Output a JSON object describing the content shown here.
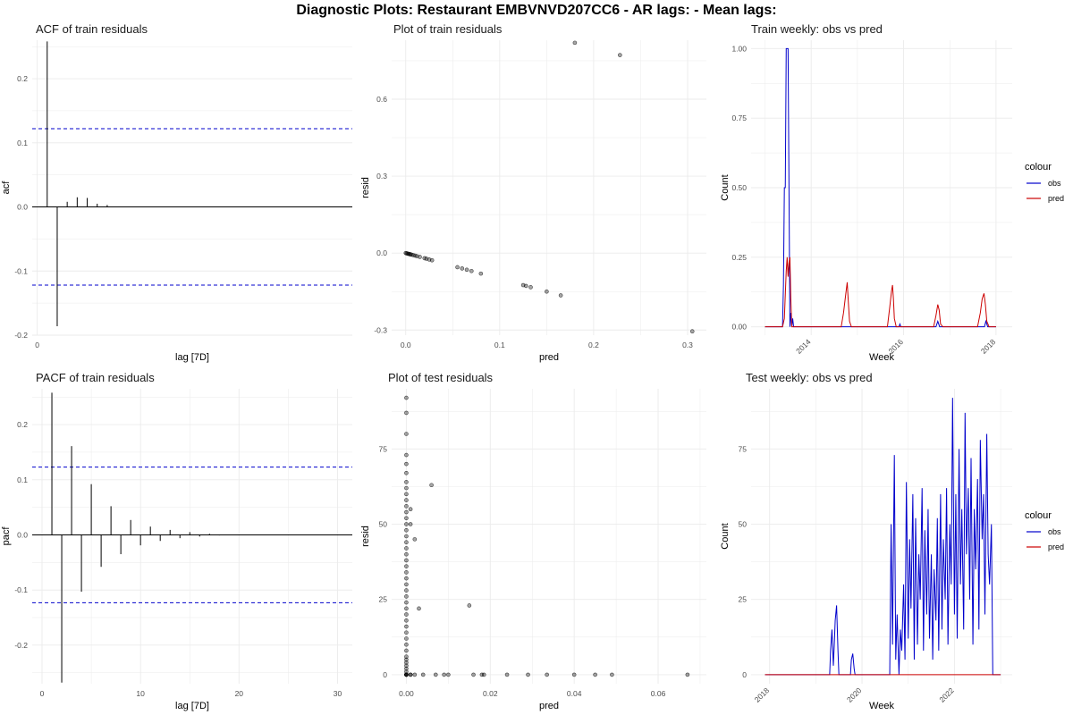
{
  "figure_title": "Diagnostic Plots: Restaurant EMBVNVD207CC6 - AR lags:  - Mean lags:",
  "colors": {
    "obs": "#0000cc",
    "pred": "#cc0000",
    "ci": "#0000cc",
    "spike": "#000000",
    "grid": "#ebebeb"
  },
  "chart_data": [
    {
      "id": "acf",
      "type": "bar",
      "title": "ACF of train residuals",
      "xlabel": "lag [7D]",
      "ylabel": "acf",
      "xlim": [
        -0.5,
        31.5
      ],
      "ylim": [
        -0.2,
        0.26
      ],
      "xticks": [
        0
      ],
      "yticks": [
        -0.2,
        -0.1,
        0.0,
        0.1,
        0.2
      ],
      "ytick_labels": [
        "-0.2",
        "-0.1",
        "0.0",
        "0.1",
        "0.2"
      ],
      "ci": 0.122,
      "x": [
        1,
        2,
        3,
        4,
        5,
        6,
        7
      ],
      "values": [
        0.258,
        -0.186,
        0.008,
        0.015,
        0.014,
        0.005,
        0.003
      ]
    },
    {
      "id": "train-resid",
      "type": "scatter",
      "title": "Plot of train residuals",
      "xlabel": "pred",
      "ylabel": "resid",
      "xlim": [
        -0.015,
        0.32
      ],
      "ylim": [
        -0.32,
        0.83
      ],
      "xticks": [
        0.0,
        0.1,
        0.2,
        0.3
      ],
      "xtick_labels": [
        "0.0",
        "0.1",
        "0.2",
        "0.3"
      ],
      "yticks": [
        -0.3,
        0.0,
        0.3,
        0.6
      ],
      "ytick_labels": [
        "-0.3",
        "0.0",
        "0.3",
        "0.6"
      ],
      "x": [
        0.0,
        0.001,
        0.002,
        0.003,
        0.004,
        0.005,
        0.006,
        0.008,
        0.01,
        0.012,
        0.015,
        0.02,
        0.022,
        0.025,
        0.028,
        0.055,
        0.06,
        0.065,
        0.07,
        0.08,
        0.125,
        0.128,
        0.133,
        0.15,
        0.165,
        0.18,
        0.228,
        0.305
      ],
      "y": [
        0.0,
        -0.001,
        -0.002,
        -0.003,
        -0.004,
        -0.005,
        -0.006,
        -0.008,
        -0.01,
        -0.012,
        -0.015,
        -0.02,
        -0.022,
        -0.025,
        -0.028,
        -0.055,
        -0.06,
        -0.065,
        -0.07,
        -0.08,
        -0.125,
        -0.128,
        -0.133,
        -0.15,
        -0.165,
        0.82,
        0.772,
        -0.305
      ]
    },
    {
      "id": "train-weekly",
      "type": "line",
      "title": "Train weekly: obs vs pred",
      "xlabel": "Week",
      "ylabel": "Count",
      "legend_title": "colour",
      "legend_placement": "right",
      "xlim": [
        2012.7,
        2018.35
      ],
      "ylim": [
        -0.03,
        1.03
      ],
      "xticks": [
        2014,
        2016,
        2018
      ],
      "xtick_labels": [
        "2014",
        "2016",
        "2018"
      ],
      "yticks": [
        0.0,
        0.25,
        0.5,
        0.75,
        1.0
      ],
      "ytick_labels": [
        "0.00",
        "0.25",
        "0.50",
        "0.75",
        "1.00"
      ],
      "series": [
        {
          "name": "obs",
          "x": [
            2013.0,
            2013.38,
            2013.4,
            2013.42,
            2013.44,
            2013.46,
            2013.48,
            2013.5,
            2013.52,
            2013.54,
            2013.56,
            2013.58,
            2013.6,
            2013.62,
            2015.9,
            2015.92,
            2015.94,
            2016.7,
            2016.72,
            2016.74,
            2016.76,
            2016.78,
            2017.75,
            2017.78,
            2017.8,
            2017.82,
            2018.0
          ],
          "y": [
            0.0,
            0.0,
            0.15,
            0.5,
            0.5,
            1.0,
            1.0,
            1.0,
            0.5,
            0.0,
            0.05,
            0.0,
            0.03,
            0.0,
            0.0,
            0.01,
            0.0,
            0.0,
            0.01,
            0.02,
            0.01,
            0.0,
            0.0,
            0.02,
            0.01,
            0.0,
            0.0
          ]
        },
        {
          "name": "pred",
          "x": [
            2013.0,
            2013.38,
            2013.42,
            2013.46,
            2013.48,
            2013.5,
            2013.52,
            2013.54,
            2013.56,
            2013.58,
            2013.62,
            2014.65,
            2014.7,
            2014.75,
            2014.78,
            2014.8,
            2014.83,
            2014.87,
            2014.9,
            2015.65,
            2015.7,
            2015.74,
            2015.76,
            2015.78,
            2015.8,
            2015.84,
            2015.88,
            2016.65,
            2016.7,
            2016.74,
            2016.77,
            2016.8,
            2016.85,
            2017.6,
            2017.66,
            2017.7,
            2017.74,
            2017.77,
            2017.8,
            2017.85,
            2018.0
          ],
          "y": [
            0.0,
            0.0,
            0.03,
            0.2,
            0.25,
            0.18,
            0.23,
            0.25,
            0.1,
            0.0,
            0.0,
            0.0,
            0.05,
            0.12,
            0.16,
            0.1,
            0.02,
            0.0,
            0.0,
            0.0,
            0.07,
            0.13,
            0.15,
            0.1,
            0.03,
            0.0,
            0.0,
            0.0,
            0.04,
            0.08,
            0.06,
            0.01,
            0.0,
            0.0,
            0.05,
            0.1,
            0.12,
            0.08,
            0.02,
            0.0,
            0.0
          ]
        }
      ]
    },
    {
      "id": "pacf",
      "type": "bar",
      "title": "PACF of train residuals",
      "xlabel": "lag [7D]",
      "ylabel": "pacf",
      "xlim": [
        -1,
        31.5
      ],
      "ylim": [
        -0.27,
        0.265
      ],
      "xticks": [
        0,
        10,
        20,
        30
      ],
      "xtick_labels": [
        "0",
        "10",
        "20",
        "30"
      ],
      "yticks": [
        -0.2,
        -0.1,
        0.0,
        0.1,
        0.2
      ],
      "ytick_labels": [
        "-0.2",
        "-0.1",
        "0.0",
        "0.1",
        "0.2"
      ],
      "ci": 0.123,
      "x": [
        1,
        2,
        3,
        4,
        5,
        6,
        7,
        8,
        9,
        10,
        11,
        12,
        13,
        14,
        15,
        16,
        17,
        18
      ],
      "values": [
        0.258,
        -0.268,
        0.161,
        -0.103,
        0.092,
        -0.058,
        0.052,
        -0.035,
        0.027,
        -0.019,
        0.015,
        -0.011,
        0.009,
        -0.006,
        0.005,
        -0.003,
        0.002,
        -0.001
      ]
    },
    {
      "id": "test-resid",
      "type": "scatter",
      "title": "Plot of test residuals",
      "xlabel": "pred",
      "ylabel": "resid",
      "xlim": [
        -0.0035,
        0.0715
      ],
      "ylim": [
        -3,
        95
      ],
      "xticks": [
        0.0,
        0.02,
        0.04,
        0.06
      ],
      "xtick_labels": [
        "0.00",
        "0.02",
        "0.04",
        "0.06"
      ],
      "yticks": [
        0,
        25,
        50,
        75
      ],
      "ytick_labels": [
        "0",
        "25",
        "50",
        "75"
      ],
      "x": [
        0.0,
        0.0,
        0.0,
        0.0,
        0.0,
        0.0,
        0.0,
        0.0,
        0.0,
        0.0,
        0.0,
        0.0,
        0.0,
        0.0,
        0.0,
        0.0,
        0.0,
        0.0,
        0.0,
        0.0,
        0.0,
        0.0,
        0.0,
        0.0,
        0.0,
        0.0,
        0.0,
        0.0,
        0.0,
        0.0,
        0.0,
        0.0,
        0.0,
        0.0,
        0.0,
        0.0,
        0.0,
        0.0,
        0.0,
        0.0,
        0.0,
        0.0,
        0.0,
        0.0,
        0.0,
        0.0,
        0.001,
        0.001,
        0.001,
        0.001,
        0.002,
        0.002,
        0.003,
        0.004,
        0.006,
        0.007,
        0.009,
        0.01,
        0.015,
        0.016,
        0.018,
        0.0185,
        0.024,
        0.029,
        0.0335,
        0.04,
        0.045,
        0.049,
        0.067
      ],
      "y": [
        92,
        87,
        80,
        73,
        70,
        67,
        64,
        62,
        60,
        58,
        56,
        54,
        52,
        50,
        48,
        46,
        44,
        42,
        40,
        38,
        36,
        34,
        32,
        30,
        28,
        26,
        24,
        22,
        20,
        18,
        16,
        14,
        12,
        10,
        8,
        6,
        5,
        4,
        3,
        2,
        1,
        0,
        0,
        0,
        0,
        0,
        55,
        50,
        0,
        0,
        45,
        0,
        22,
        0,
        63,
        0,
        0,
        0,
        23,
        0,
        0,
        0,
        0,
        0,
        0,
        0,
        0,
        0,
        0
      ]
    },
    {
      "id": "test-weekly",
      "type": "line",
      "title": "Test weekly: obs vs pred",
      "xlabel": "Week",
      "ylabel": "Count",
      "legend_title": "colour",
      "legend_placement": "right",
      "xlim": [
        2017.6,
        2023.25
      ],
      "ylim": [
        -3,
        95
      ],
      "xticks": [
        2018,
        2020,
        2022
      ],
      "xtick_labels": [
        "2018",
        "2020",
        "2022"
      ],
      "yticks": [
        0,
        25,
        50,
        75
      ],
      "ytick_labels": [
        "0",
        "25",
        "50",
        "75"
      ],
      "series": [
        {
          "name": "obs",
          "x": [
            2017.9,
            2019.3,
            2019.32,
            2019.35,
            2019.38,
            2019.4,
            2019.42,
            2019.45,
            2019.48,
            2019.5,
            2019.52,
            2019.75,
            2019.77,
            2019.8,
            2019.83,
            2019.85,
            2020.6,
            2020.63,
            2020.66,
            2020.7,
            2020.73,
            2020.76,
            2020.8,
            2020.83,
            2020.86,
            2020.9,
            2020.93,
            2020.96,
            2021.0,
            2021.03,
            2021.06,
            2021.1,
            2021.13,
            2021.16,
            2021.2,
            2021.23,
            2021.26,
            2021.3,
            2021.33,
            2021.36,
            2021.4,
            2021.43,
            2021.46,
            2021.5,
            2021.53,
            2021.56,
            2021.6,
            2021.63,
            2021.66,
            2021.7,
            2021.73,
            2021.76,
            2021.8,
            2021.83,
            2021.86,
            2021.9,
            2021.93,
            2021.96,
            2022.0,
            2022.03,
            2022.06,
            2022.1,
            2022.13,
            2022.16,
            2022.2,
            2022.23,
            2022.26,
            2022.3,
            2022.33,
            2022.36,
            2022.4,
            2022.43,
            2022.46,
            2022.5,
            2022.53,
            2022.56,
            2022.6,
            2022.63,
            2022.66,
            2022.7,
            2022.73,
            2022.76,
            2022.8,
            2022.83,
            2022.86,
            2023.0
          ],
          "y": [
            0,
            0,
            8,
            15,
            3,
            10,
            18,
            23,
            8,
            0,
            0,
            0,
            5,
            7,
            2,
            0,
            0,
            50,
            10,
            73,
            5,
            20,
            0,
            15,
            8,
            30,
            5,
            64,
            12,
            45,
            22,
            60,
            5,
            52,
            10,
            40,
            25,
            62,
            8,
            48,
            20,
            55,
            12,
            40,
            5,
            35,
            18,
            52,
            8,
            60,
            15,
            45,
            25,
            62,
            10,
            50,
            30,
            92,
            20,
            60,
            12,
            75,
            30,
            55,
            15,
            87,
            40,
            62,
            25,
            72,
            10,
            55,
            35,
            65,
            15,
            78,
            45,
            60,
            20,
            80,
            40,
            30,
            50,
            0,
            0,
            0
          ]
        },
        {
          "name": "pred",
          "x": [
            2017.9,
            2023.0
          ],
          "y": [
            0,
            0
          ]
        }
      ]
    }
  ]
}
